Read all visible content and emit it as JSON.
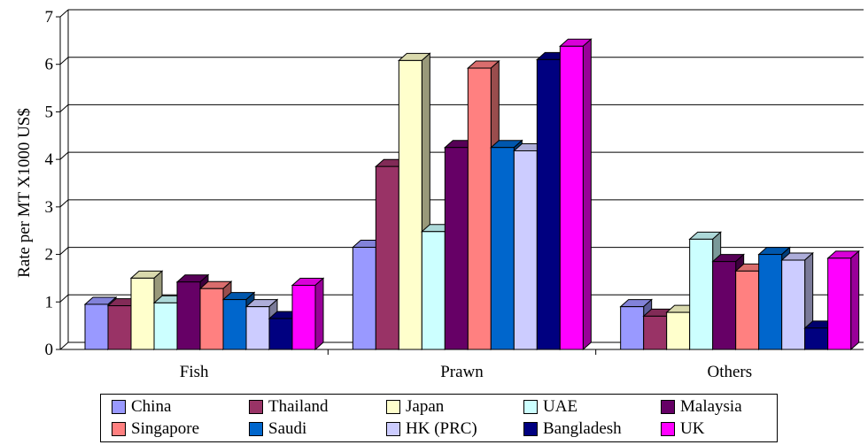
{
  "chart_data": {
    "type": "bar",
    "style": "3d-clustered",
    "title": "",
    "xlabel": "",
    "ylabel": "Rate per MT X1000 US$",
    "ylim": [
      0,
      7
    ],
    "yticks": [
      "0",
      "1",
      "2",
      "3",
      "4",
      "5",
      "6",
      "7"
    ],
    "grid": true,
    "legend_position": "bottom",
    "categories": [
      "Fish",
      "Prawn",
      "Others"
    ],
    "series": [
      {
        "name": "China",
        "color": "#9999FF",
        "values": [
          0.95,
          2.15,
          0.9
        ]
      },
      {
        "name": "Thailand",
        "color": "#993366",
        "values": [
          0.92,
          3.85,
          0.7
        ]
      },
      {
        "name": "Japan",
        "color": "#FFFFCC",
        "values": [
          1.5,
          6.08,
          0.78
        ]
      },
      {
        "name": "UAE",
        "color": "#CCFFFF",
        "values": [
          0.98,
          2.48,
          2.32
        ]
      },
      {
        "name": "Malaysia",
        "color": "#660066",
        "values": [
          1.42,
          4.25,
          1.85
        ]
      },
      {
        "name": "Singapore",
        "color": "#FF8080",
        "values": [
          1.28,
          5.92,
          1.65
        ]
      },
      {
        "name": "Saudi",
        "color": "#0066CC",
        "values": [
          1.05,
          4.25,
          2.0
        ]
      },
      {
        "name": "HK (PRC)",
        "color": "#CCCCFF",
        "values": [
          0.9,
          4.18,
          1.88
        ]
      },
      {
        "name": "Bangladesh",
        "color": "#000080",
        "values": [
          0.65,
          6.1,
          0.45
        ]
      },
      {
        "name": "UK",
        "color": "#FF00FF",
        "values": [
          1.35,
          6.38,
          1.92
        ]
      }
    ]
  }
}
